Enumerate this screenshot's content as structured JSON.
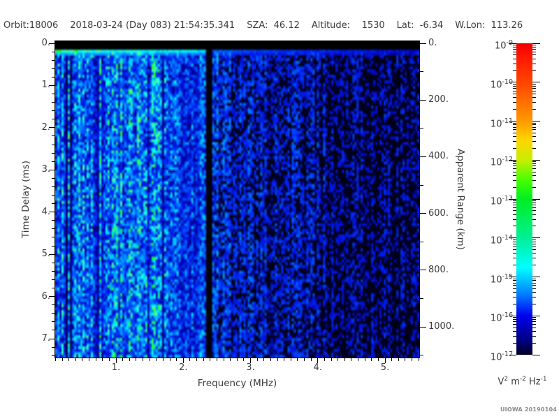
{
  "header": {
    "segments": [
      "Orbit:18006",
      "2018-03-24 (Day 083) 21:54:35.341",
      "SZA:  46.12",
      "Altitude:    1530",
      "Lat:  -6.34",
      "W.Lon:  113.26"
    ]
  },
  "credit": "UIOWA 20190104",
  "chart_data": {
    "type": "heatmap",
    "title": "Orbit:18006 2018-03-24 (Day 083) 21:54:35.341 SZA: 46.12 Altitude: 1530 Lat: -6.34 W.Lon: 113.26",
    "xlabel": "Frequency (MHz)",
    "x_range_mhz": [
      0.1,
      5.51
    ],
    "x_major_ticks": [
      1,
      2,
      3,
      4,
      5
    ],
    "x_major_tick_labels": [
      "1.",
      "2.",
      "3.",
      "4.",
      "5."
    ],
    "x_minor_step_mhz": 0.1,
    "ylabel_left": "Time Delay (ms)",
    "y_range_ms": [
      0,
      7.45
    ],
    "y_major_ticks": [
      0,
      1,
      2,
      3,
      4,
      5,
      6,
      7
    ],
    "y_major_tick_labels": [
      "0.",
      "1.",
      "2.",
      "3.",
      "4.",
      "5.",
      "6.",
      "7."
    ],
    "y_minor_step_ms": 0.2,
    "ylabel_right": "Apparent Range (km)",
    "right_range_km": [
      0,
      1108
    ],
    "right_major_ticks": [
      0,
      200,
      400,
      600,
      800,
      1000
    ],
    "right_major_tick_labels": [
      "0.",
      "200.",
      "400.",
      "600.",
      "800.",
      "1000."
    ],
    "right_minor_step_km": 100,
    "colorbar": {
      "exponent_base": "10",
      "exponents": [
        -9,
        -10,
        -11,
        -12,
        -13,
        -14,
        -15,
        -16,
        -17
      ],
      "unit_parts": [
        {
          "t": "V"
        },
        {
          "t": "2",
          "sup": true
        },
        {
          "t": " m",
          "sup": false
        },
        {
          "t": "-2",
          "sup": true
        },
        {
          "t": " Hz",
          "sup": false
        },
        {
          "t": "-1",
          "sup": true
        }
      ],
      "stops": [
        {
          "pos": 0.0,
          "color": "#ee0000"
        },
        {
          "pos": 0.04,
          "color": "#ff1500"
        },
        {
          "pos": 0.125,
          "color": "#ff4400"
        },
        {
          "pos": 0.25,
          "color": "#ff9900"
        },
        {
          "pos": 0.31,
          "color": "#ffd500"
        },
        {
          "pos": 0.375,
          "color": "#c8ee00"
        },
        {
          "pos": 0.44,
          "color": "#44ff00"
        },
        {
          "pos": 0.5,
          "color": "#00ee22"
        },
        {
          "pos": 0.625,
          "color": "#00f096"
        },
        {
          "pos": 0.72,
          "color": "#00ffff"
        },
        {
          "pos": 0.81,
          "color": "#0077ff"
        },
        {
          "pos": 0.875,
          "color": "#0000ee"
        },
        {
          "pos": 0.96,
          "color": "#000077"
        },
        {
          "pos": 1.0,
          "color": "#000022"
        }
      ]
    },
    "features": [
      "Black band in the first range bins (0 to ~0.2 ms delay) across all frequencies",
      "Bright cyan echo line at ~0.25 ms delay across all frequencies, saturating to green below ~0.45 MHz",
      "Strong diffuse echoes with fine vertical striations (cyan/light blue) from 0.1 to ~2.3 MHz at all delays",
      "Dark absorption stripes near 0.24-0.34 MHz",
      "Black dropout column at ~2.35-2.45 MHz",
      "Weak signal (dark blue blobs with black speckle) from 2.45 to 5.5 MHz, dimming toward higher frequency"
    ],
    "procedural": {
      "seed": 20190104,
      "cols": 174,
      "rows": 113,
      "base_curve": [
        [
          0.1,
          0.5
        ],
        [
          0.5,
          0.52
        ],
        [
          1.0,
          0.55
        ],
        [
          1.6,
          0.54
        ],
        [
          2.0,
          0.47
        ],
        [
          2.3,
          0.42
        ],
        [
          2.6,
          0.36
        ],
        [
          3.2,
          0.33
        ],
        [
          4.0,
          0.3
        ],
        [
          5.0,
          0.27
        ],
        [
          5.51,
          0.25
        ]
      ],
      "gap_mhz": [
        2.33,
        2.44
      ],
      "dark_stripes_mhz": [
        [
          0.24,
          0.28
        ],
        [
          0.3,
          0.34
        ]
      ],
      "green_spots_mhz": [
        [
          0.1,
          0.18
        ],
        [
          0.37,
          0.45
        ]
      ],
      "palette": [
        [
          0.0,
          "#000000"
        ],
        [
          0.1,
          "#00003c"
        ],
        [
          0.25,
          "#0000aa"
        ],
        [
          0.4,
          "#001eee"
        ],
        [
          0.55,
          "#005aff"
        ],
        [
          0.7,
          "#00aaff"
        ],
        [
          0.82,
          "#00ffff"
        ],
        [
          0.9,
          "#50ffaa"
        ],
        [
          1.0,
          "#1eff3c"
        ]
      ]
    }
  }
}
